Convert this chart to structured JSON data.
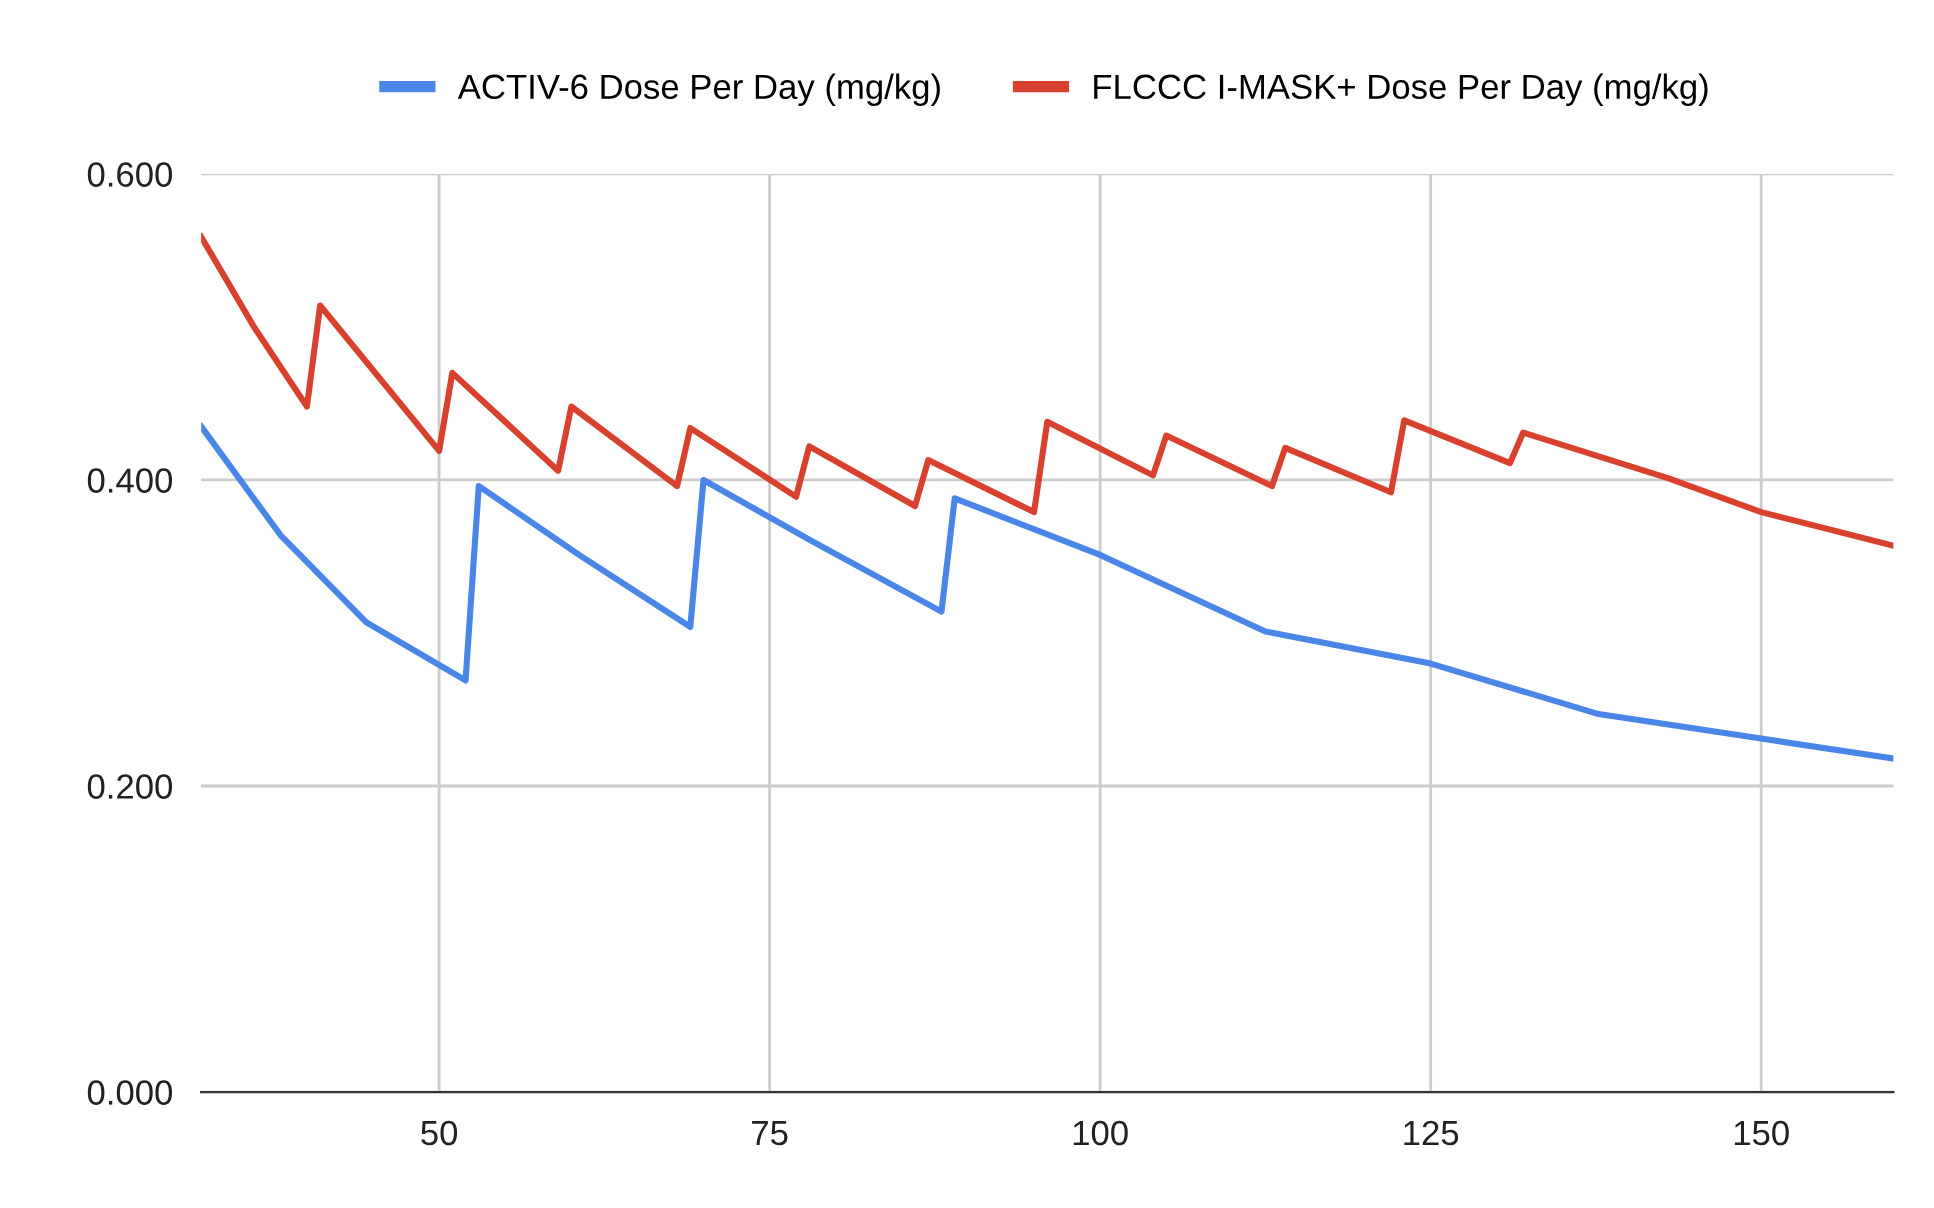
{
  "chart_data": {
    "type": "line",
    "xlim": [
      32,
      160
    ],
    "xticks": [
      50,
      75,
      100,
      125,
      150
    ],
    "ylim": [
      0,
      0.6
    ],
    "yticks": [
      {
        "value": 0,
        "label": "0.000"
      },
      {
        "value": 0.2,
        "label": "0.200"
      },
      {
        "value": 0.4,
        "label": "0.400"
      },
      {
        "value": 0.6,
        "label": "0.600"
      }
    ],
    "grid": true,
    "legend": "top",
    "marker": "none",
    "line_style": "solid",
    "series": [
      {
        "name": "ACTIV-6 Dose Per Day (mg/kg)",
        "color": "#4a86e8",
        "x": [
          32,
          38,
          44.5,
          52,
          53,
          60.6,
          69,
          70,
          78.2,
          88,
          89,
          100,
          112.5,
          125,
          137.7,
          150,
          160
        ],
        "values": [
          0.435,
          0.364,
          0.307,
          0.269,
          0.396,
          0.351,
          0.304,
          0.4,
          0.36,
          0.314,
          0.388,
          0.351,
          0.301,
          0.28,
          0.247,
          0.231,
          0.218
        ]
      },
      {
        "name": "FLCCC I-MASK+ Dose Per Day (mg/kg)",
        "color": "#d9412f",
        "x": [
          32,
          36,
          40,
          41,
          50,
          51,
          59,
          60,
          68,
          69,
          77,
          78,
          86,
          87,
          95,
          96,
          104,
          105,
          113,
          114,
          122,
          123,
          131,
          132,
          143,
          150,
          160
        ],
        "values": [
          0.559,
          0.5,
          0.448,
          0.514,
          0.419,
          0.47,
          0.406,
          0.448,
          0.396,
          0.434,
          0.389,
          0.422,
          0.383,
          0.413,
          0.379,
          0.438,
          0.403,
          0.429,
          0.396,
          0.421,
          0.392,
          0.439,
          0.411,
          0.431,
          0.401,
          0.379,
          0.357
        ]
      }
    ]
  }
}
